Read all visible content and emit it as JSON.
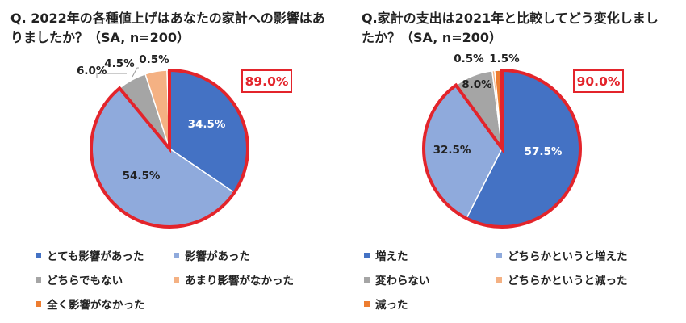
{
  "chart_data": [
    {
      "type": "pie",
      "title": "Q. 2022年の各種値上げはあなたの家計への影響はありましたか？（SA, n=200）",
      "slices": [
        {
          "label": "とても影響があった",
          "value": 34.5,
          "value_label": "34.5%",
          "color": "#4472C4"
        },
        {
          "label": "影響があった",
          "value": 54.5,
          "value_label": "54.5%",
          "color": "#8FAADC"
        },
        {
          "label": "どちらでもない",
          "value": 6.0,
          "value_label": "6.0%",
          "color": "#A5A5A5"
        },
        {
          "label": "あまり影響がなかった",
          "value": 4.5,
          "value_label": "4.5%",
          "color": "#F4B183"
        },
        {
          "label": "全く影響がなかった",
          "value": 0.5,
          "value_label": "0.5%",
          "color": "#ED7D31"
        }
      ],
      "callout": "89.0%",
      "callout_color": "#E3242B",
      "legend_placement": "bottom"
    },
    {
      "type": "pie",
      "title": "Q.家計の支出は2021年と比較してどう変化しましたか？（SA, n=200）",
      "slices": [
        {
          "label": "増えた",
          "value": 57.5,
          "value_label": "57.5%",
          "color": "#4472C4"
        },
        {
          "label": "どちらかというと増えた",
          "value": 32.5,
          "value_label": "32.5%",
          "color": "#8FAADC"
        },
        {
          "label": "変わらない",
          "value": 8.0,
          "value_label": "8.0%",
          "color": "#A5A5A5"
        },
        {
          "label": "どちらかというと減った",
          "value": 0.5,
          "value_label": "0.5%",
          "color": "#F4B183"
        },
        {
          "label": "減った",
          "value": 1.5,
          "value_label": "1.5%",
          "color": "#ED7D31"
        }
      ],
      "callout": "90.0%",
      "callout_color": "#E3242B",
      "legend_placement": "bottom"
    }
  ]
}
